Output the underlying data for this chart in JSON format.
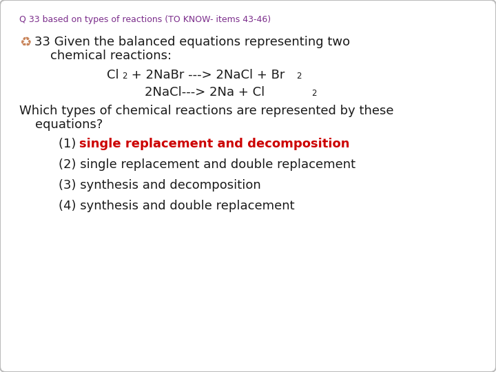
{
  "title": "Q 33 based on types of reactions (TO KNOW- items 43-46)",
  "title_color": "#7B2D8B",
  "title_fontsize": 9,
  "background_color": "#FFFFFF",
  "border_color": "#BBBBBB",
  "symbol_char": "♻",
  "symbol_color": "#C8845A",
  "text_color": "#1a1a1a",
  "red_color": "#CC0000",
  "line1": "33 Given the balanced equations representing two",
  "line2": "    chemical reactions:",
  "eq1a": "Cl",
  "eq1b": "2",
  "eq1c": " + 2NaBr ---> 2NaCl + Br",
  "eq1d": "2",
  "eq2a": "2NaCl---> 2Na + Cl",
  "eq2b": "2",
  "q_line1": "Which types of chemical reactions are represented by these",
  "q_line2": "    equations?",
  "opt1_prefix": "(1) ",
  "opt1_text": "single replacement and decomposition",
  "opt2": "(2) single replacement and double replacement",
  "opt3": "(3) synthesis and decomposition",
  "opt4": "(4) synthesis and double replacement",
  "main_fontsize": 13,
  "sub_fontsize": 8.5
}
